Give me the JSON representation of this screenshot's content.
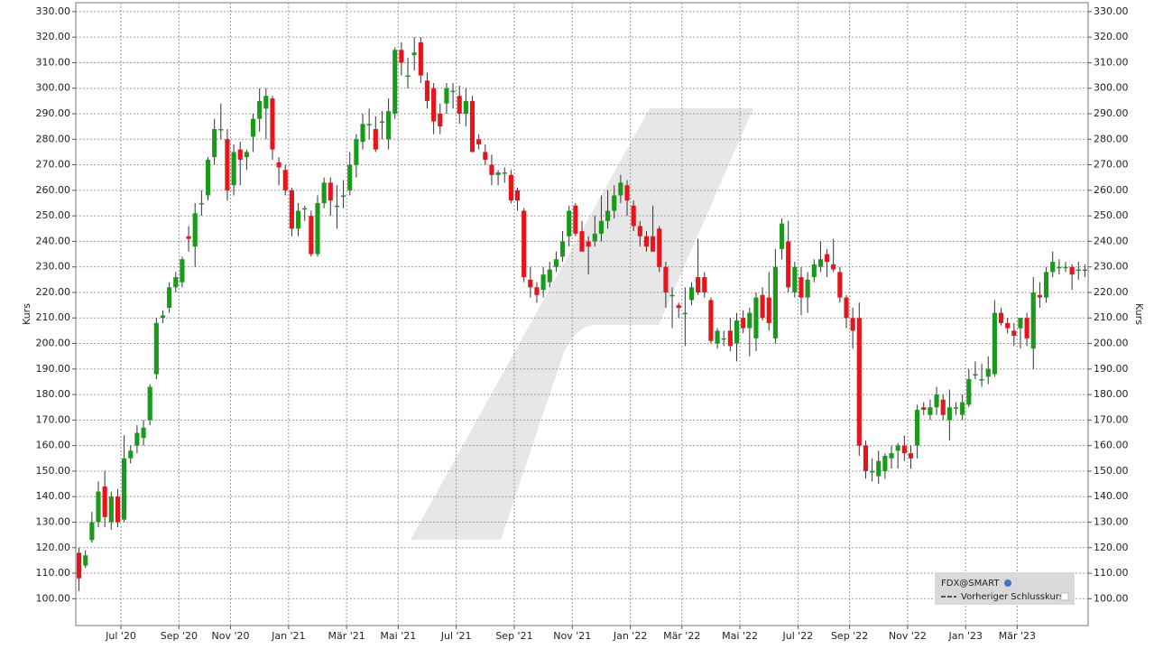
{
  "chart_data": {
    "type": "candlestick",
    "y_label": "Kurs",
    "legend": {
      "title": "FDX@SMART",
      "entry": "Vorheriger Schlusskurs",
      "corner": "lower right"
    },
    "up_color": "#1a9a1a",
    "down_color": "#e8141b",
    "ylim": [
      89.5,
      333.5
    ],
    "yticks": [
      {
        "value": 100,
        "label": "100.00"
      },
      {
        "value": 110,
        "label": "110.00"
      },
      {
        "value": 120,
        "label": "120.00"
      },
      {
        "value": 130,
        "label": "130.00"
      },
      {
        "value": 140,
        "label": "140.00"
      },
      {
        "value": 150,
        "label": "150.00"
      },
      {
        "value": 160,
        "label": "160.00"
      },
      {
        "value": 170,
        "label": "170.00"
      },
      {
        "value": 180,
        "label": "180.00"
      },
      {
        "value": 190,
        "label": "190.00"
      },
      {
        "value": 200,
        "label": "200.00"
      },
      {
        "value": 210,
        "label": "210.00"
      },
      {
        "value": 220,
        "label": "220.00"
      },
      {
        "value": 230,
        "label": "230.00"
      },
      {
        "value": 240,
        "label": "240.00"
      },
      {
        "value": 250,
        "label": "250.00"
      },
      {
        "value": 260,
        "label": "260.00"
      },
      {
        "value": 270,
        "label": "270.00"
      },
      {
        "value": 280,
        "label": "280.00"
      },
      {
        "value": 290,
        "label": "290.00"
      },
      {
        "value": 300,
        "label": "300.00"
      },
      {
        "value": 310,
        "label": "310.00"
      },
      {
        "value": 320,
        "label": "320.00"
      },
      {
        "value": 330,
        "label": "330.00"
      }
    ],
    "grid": true,
    "categories": [
      null,
      null,
      null,
      null,
      null,
      null,
      null,
      "Jul '20",
      null,
      null,
      null,
      null,
      null,
      null,
      null,
      null,
      "Sep '20",
      null,
      null,
      null,
      null,
      null,
      null,
      null,
      "Nov '20",
      null,
      null,
      null,
      null,
      null,
      null,
      null,
      null,
      "Jan '21",
      null,
      null,
      null,
      null,
      null,
      null,
      null,
      null,
      "Mär '21",
      null,
      null,
      null,
      null,
      null,
      null,
      null,
      "Mai '21",
      null,
      null,
      null,
      null,
      null,
      null,
      null,
      null,
      "Jul '21",
      null,
      null,
      null,
      null,
      null,
      null,
      null,
      null,
      "Sep '21",
      null,
      null,
      null,
      null,
      null,
      null,
      null,
      null,
      "Nov '21",
      null,
      null,
      null,
      null,
      null,
      null,
      null,
      null,
      "Jan '22",
      null,
      null,
      null,
      null,
      null,
      null,
      null,
      "Mär '22",
      null,
      null,
      null,
      null,
      null,
      null,
      null,
      null,
      "Mai '22",
      null,
      null,
      null,
      null,
      null,
      null,
      null,
      null,
      "Jul '22",
      null,
      null,
      null,
      null,
      null,
      null,
      null,
      "Sep '22",
      null,
      null,
      null,
      null,
      null,
      null,
      null,
      null,
      "Nov '22",
      null,
      null,
      null,
      null,
      null,
      null,
      null,
      null,
      "Jan '23",
      null,
      null,
      null,
      null,
      null,
      null,
      null,
      "Mär '23",
      null,
      null,
      null,
      null,
      null,
      null,
      null,
      null,
      null,
      null
    ],
    "candles": [
      [
        118,
        120,
        103,
        108
      ],
      [
        113,
        119,
        112,
        117
      ],
      [
        123,
        134,
        122,
        130
      ],
      [
        130,
        146,
        128,
        142
      ],
      [
        144,
        150,
        128,
        132
      ],
      [
        130,
        142,
        127,
        140
      ],
      [
        140,
        143,
        128,
        130
      ],
      [
        131,
        164,
        130,
        155
      ],
      [
        155,
        160,
        153,
        158
      ],
      [
        160,
        168,
        157,
        165
      ],
      [
        163,
        170,
        160,
        167
      ],
      [
        170,
        184,
        168,
        183
      ],
      [
        188,
        210,
        186,
        208
      ],
      [
        210,
        213,
        208,
        211
      ],
      [
        214,
        224,
        212,
        222
      ],
      [
        222,
        228,
        220,
        226
      ],
      [
        224,
        234,
        222,
        233
      ],
      [
        242,
        246,
        236,
        241
      ],
      [
        238,
        255,
        230,
        251
      ],
      [
        255,
        260,
        250,
        255
      ],
      [
        258,
        273,
        256,
        272
      ],
      [
        273,
        288,
        270,
        284
      ],
      [
        284,
        294,
        280,
        284
      ],
      [
        280,
        284,
        256,
        260
      ],
      [
        262,
        278,
        258,
        275
      ],
      [
        276,
        279,
        262,
        272
      ],
      [
        273,
        276,
        268,
        275
      ],
      [
        281,
        290,
        275,
        288
      ],
      [
        288,
        300,
        283,
        295
      ],
      [
        292,
        300,
        280,
        297
      ],
      [
        296,
        297,
        272,
        276
      ],
      [
        271,
        273,
        262,
        269
      ],
      [
        268,
        270,
        258,
        260
      ],
      [
        260,
        261,
        242,
        245
      ],
      [
        245,
        255,
        242,
        252
      ],
      [
        253,
        254,
        248,
        253
      ],
      [
        250,
        252,
        234,
        235
      ],
      [
        235,
        258,
        234,
        255
      ],
      [
        255,
        265,
        253,
        263
      ],
      [
        263,
        265,
        250,
        256
      ],
      [
        254,
        262,
        245,
        254
      ],
      [
        258,
        264,
        253,
        258
      ],
      [
        260,
        275,
        258,
        270
      ],
      [
        270,
        282,
        265,
        280
      ],
      [
        279,
        290,
        276,
        286
      ],
      [
        286,
        292,
        280,
        286
      ],
      [
        284,
        289,
        275,
        276
      ],
      [
        287,
        291,
        280,
        287
      ],
      [
        280,
        296,
        276,
        291
      ],
      [
        290,
        316,
        288,
        315
      ],
      [
        315,
        318,
        305,
        310
      ],
      [
        305,
        312,
        300,
        305
      ],
      [
        313,
        320,
        307,
        314
      ],
      [
        318,
        320,
        302,
        305
      ],
      [
        303,
        306,
        292,
        295
      ],
      [
        300,
        302,
        282,
        287
      ],
      [
        290,
        294,
        282,
        285
      ],
      [
        294,
        302,
        290,
        300
      ],
      [
        299,
        302,
        292,
        299
      ],
      [
        297,
        301,
        286,
        290
      ],
      [
        290,
        300,
        285,
        295
      ],
      [
        295,
        297,
        275,
        275
      ],
      [
        280,
        282,
        276,
        278
      ],
      [
        275,
        278,
        270,
        272
      ],
      [
        270,
        274,
        262,
        266
      ],
      [
        266,
        268,
        262,
        267
      ],
      [
        267,
        269,
        263,
        267
      ],
      [
        266,
        268,
        255,
        256
      ],
      [
        260,
        261,
        252,
        256
      ],
      [
        252,
        253,
        224,
        226
      ],
      [
        225,
        230,
        218,
        222
      ],
      [
        222,
        224,
        216,
        219
      ],
      [
        221,
        230,
        218,
        227
      ],
      [
        224,
        232,
        222,
        229
      ],
      [
        230,
        236,
        228,
        233
      ],
      [
        234,
        244,
        232,
        240
      ],
      [
        242,
        254,
        238,
        252
      ],
      [
        254,
        255,
        242,
        243
      ],
      [
        244,
        248,
        236,
        236
      ],
      [
        240,
        242,
        227,
        238
      ],
      [
        240,
        250,
        238,
        243
      ],
      [
        243,
        258,
        240,
        248
      ],
      [
        248,
        260,
        245,
        252
      ],
      [
        252,
        262,
        249,
        258
      ],
      [
        258,
        266,
        255,
        263
      ],
      [
        262,
        264,
        250,
        256
      ],
      [
        254,
        256,
        244,
        246
      ],
      [
        246,
        248,
        238,
        242
      ],
      [
        242,
        244,
        236,
        238
      ],
      [
        242,
        254,
        236,
        236
      ],
      [
        245,
        246,
        228,
        230
      ],
      [
        230,
        232,
        214,
        220
      ],
      [
        219,
        222,
        206,
        219
      ],
      [
        215,
        216,
        210,
        214
      ],
      [
        212,
        222,
        199,
        212
      ],
      [
        217,
        224,
        215,
        222
      ],
      [
        226,
        241,
        219,
        220
      ],
      [
        226,
        228,
        218,
        220
      ],
      [
        217,
        218,
        200,
        201
      ],
      [
        200,
        206,
        198,
        205
      ],
      [
        202,
        205,
        199,
        202
      ],
      [
        205,
        210,
        197,
        199
      ],
      [
        200,
        212,
        193,
        209
      ],
      [
        210,
        213,
        204,
        206
      ],
      [
        206,
        214,
        195,
        212
      ],
      [
        202,
        220,
        197,
        218
      ],
      [
        219,
        222,
        209,
        210
      ],
      [
        218,
        228,
        205,
        208
      ],
      [
        202,
        237,
        200,
        230
      ],
      [
        237,
        249,
        233,
        247
      ],
      [
        240,
        248,
        220,
        222
      ],
      [
        220,
        232,
        218,
        230
      ],
      [
        226,
        230,
        211,
        218
      ],
      [
        218,
        228,
        212,
        225
      ],
      [
        226,
        233,
        224,
        231
      ],
      [
        230,
        240,
        228,
        233
      ],
      [
        235,
        237,
        226,
        232
      ],
      [
        231,
        241,
        228,
        229
      ],
      [
        228,
        230,
        216,
        218
      ],
      [
        218,
        219,
        206,
        210
      ],
      [
        210,
        214,
        198,
        205
      ],
      [
        210,
        216,
        156,
        160
      ],
      [
        160,
        162,
        147,
        150
      ],
      [
        150,
        155,
        146,
        150
      ],
      [
        148,
        158,
        145,
        154
      ],
      [
        150,
        157,
        147,
        156
      ],
      [
        155,
        160,
        151,
        157
      ],
      [
        158,
        161,
        151,
        160
      ],
      [
        160,
        164,
        154,
        157
      ],
      [
        157,
        160,
        151,
        155
      ],
      [
        160,
        176,
        155,
        174
      ],
      [
        175,
        177,
        172,
        174
      ],
      [
        172,
        178,
        170,
        175
      ],
      [
        175,
        183,
        172,
        180
      ],
      [
        178,
        180,
        170,
        172
      ],
      [
        170,
        182,
        162,
        175
      ],
      [
        175,
        177,
        172,
        175
      ],
      [
        172,
        180,
        170,
        177
      ],
      [
        176,
        190,
        175,
        186
      ],
      [
        188,
        193,
        186,
        188
      ],
      [
        186,
        192,
        183,
        186
      ],
      [
        187,
        195,
        184,
        190
      ],
      [
        188,
        217,
        187,
        212
      ],
      [
        212,
        214,
        207,
        208
      ],
      [
        208,
        210,
        204,
        206
      ],
      [
        205,
        208,
        199,
        203
      ],
      [
        206,
        210,
        198,
        210
      ],
      [
        210,
        212,
        199,
        202
      ],
      [
        198,
        226,
        190,
        220
      ],
      [
        219,
        224,
        214,
        218
      ],
      [
        218,
        230,
        216,
        228
      ],
      [
        228,
        236,
        226,
        232
      ],
      [
        230,
        233,
        227,
        230
      ],
      [
        230,
        232,
        228,
        230
      ],
      [
        230,
        231,
        221,
        227
      ],
      [
        229,
        232,
        225,
        229
      ],
      [
        229,
        231,
        226,
        229
      ]
    ]
  }
}
